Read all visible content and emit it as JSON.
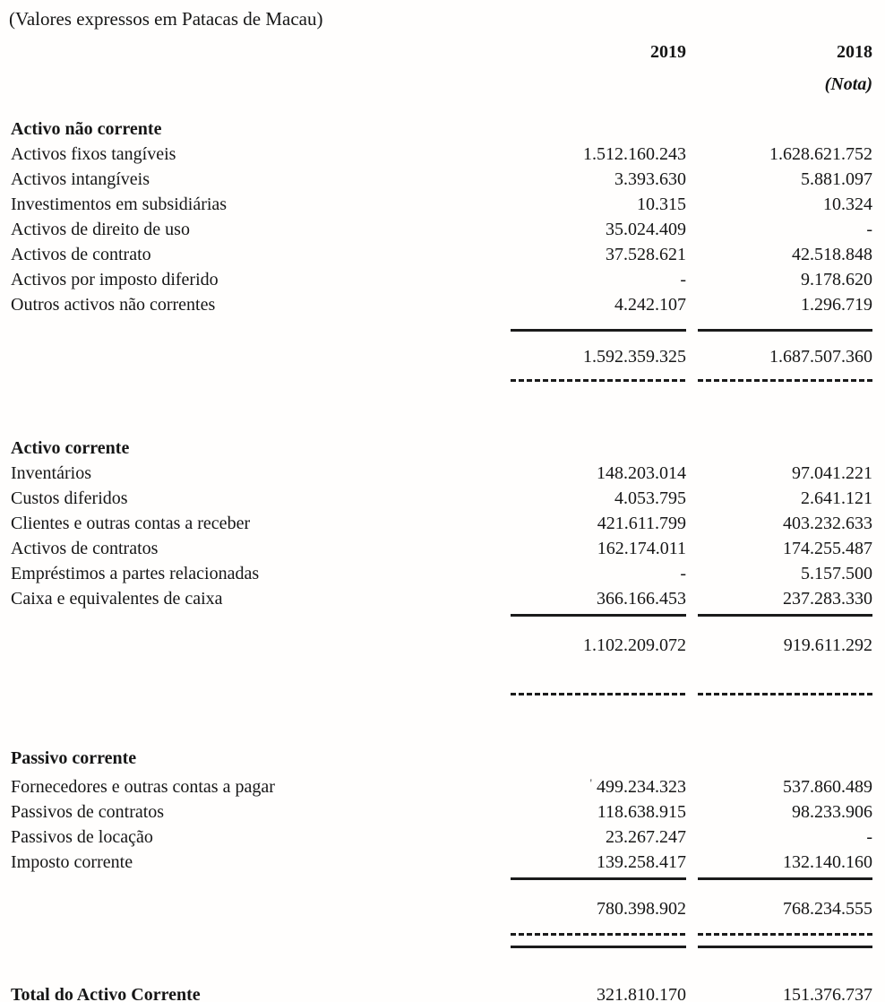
{
  "page": {
    "currency_note": "(Valores expressos em Patacas de Macau)"
  },
  "columns": {
    "year_2019": "2019",
    "year_2018": "2018",
    "nota_label": "(Nota)"
  },
  "sections": [
    {
      "title": "Activo não corrente",
      "rows": [
        {
          "label": "Activos fixos tangíveis",
          "y2019": "1.512.160.243",
          "y2018": "1.628.621.752"
        },
        {
          "label": "Activos intangíveis",
          "y2019": "3.393.630",
          "y2018": "5.881.097"
        },
        {
          "label": "Investimentos em subsidiárias",
          "y2019": "10.315",
          "y2018": "10.324"
        },
        {
          "label": "Activos de direito de uso",
          "y2019": "35.024.409",
          "y2018": "-"
        },
        {
          "label": "Activos de contrato",
          "y2019": "37.528.621",
          "y2018": "42.518.848"
        },
        {
          "label": "Activos por imposto diferido",
          "y2019": "-",
          "y2018": "9.178.620"
        },
        {
          "label": "Outros activos não correntes",
          "y2019": "4.242.107",
          "y2018": "1.296.719"
        }
      ],
      "total": {
        "y2019": "1.592.359.325",
        "y2018": "1.687.507.360"
      }
    },
    {
      "title": "Activo corrente",
      "rows": [
        {
          "label": "Inventários",
          "y2019": "148.203.014",
          "y2018": "97.041.221"
        },
        {
          "label": "Custos diferidos",
          "y2019": "4.053.795",
          "y2018": "2.641.121"
        },
        {
          "label": "Clientes e outras contas a receber",
          "y2019": "421.611.799",
          "y2018": "403.232.633"
        },
        {
          "label": "Activos de contratos",
          "y2019": "162.174.011",
          "y2018": "174.255.487"
        },
        {
          "label": "Empréstimos a partes relacionadas",
          "y2019": "-",
          "y2018": "5.157.500"
        },
        {
          "label": "Caixa e equivalentes de caixa",
          "y2019": "366.166.453",
          "y2018": "237.283.330"
        }
      ],
      "total": {
        "y2019": "1.102.209.072",
        "y2018": "919.611.292"
      }
    },
    {
      "title": "Passivo corrente",
      "rows": [
        {
          "label": "Fornecedores e outras contas a pagar",
          "mark": "'",
          "y2019": "499.234.323",
          "y2018": "537.860.489"
        },
        {
          "label": "Passivos de contratos",
          "y2019": "118.638.915",
          "y2018": "98.233.906"
        },
        {
          "label": "Passivos de locação",
          "y2019": "23.267.247",
          "y2018": "-"
        },
        {
          "label": "Imposto corrente",
          "y2019": "139.258.417",
          "y2018": "132.140.160"
        }
      ],
      "total": {
        "y2019": "780.398.902",
        "y2018": "768.234.555"
      }
    }
  ],
  "grand_total": {
    "label": "Total do Activo Corrente",
    "y2019": "321.810.170",
    "y2018": "151.376.737"
  }
}
